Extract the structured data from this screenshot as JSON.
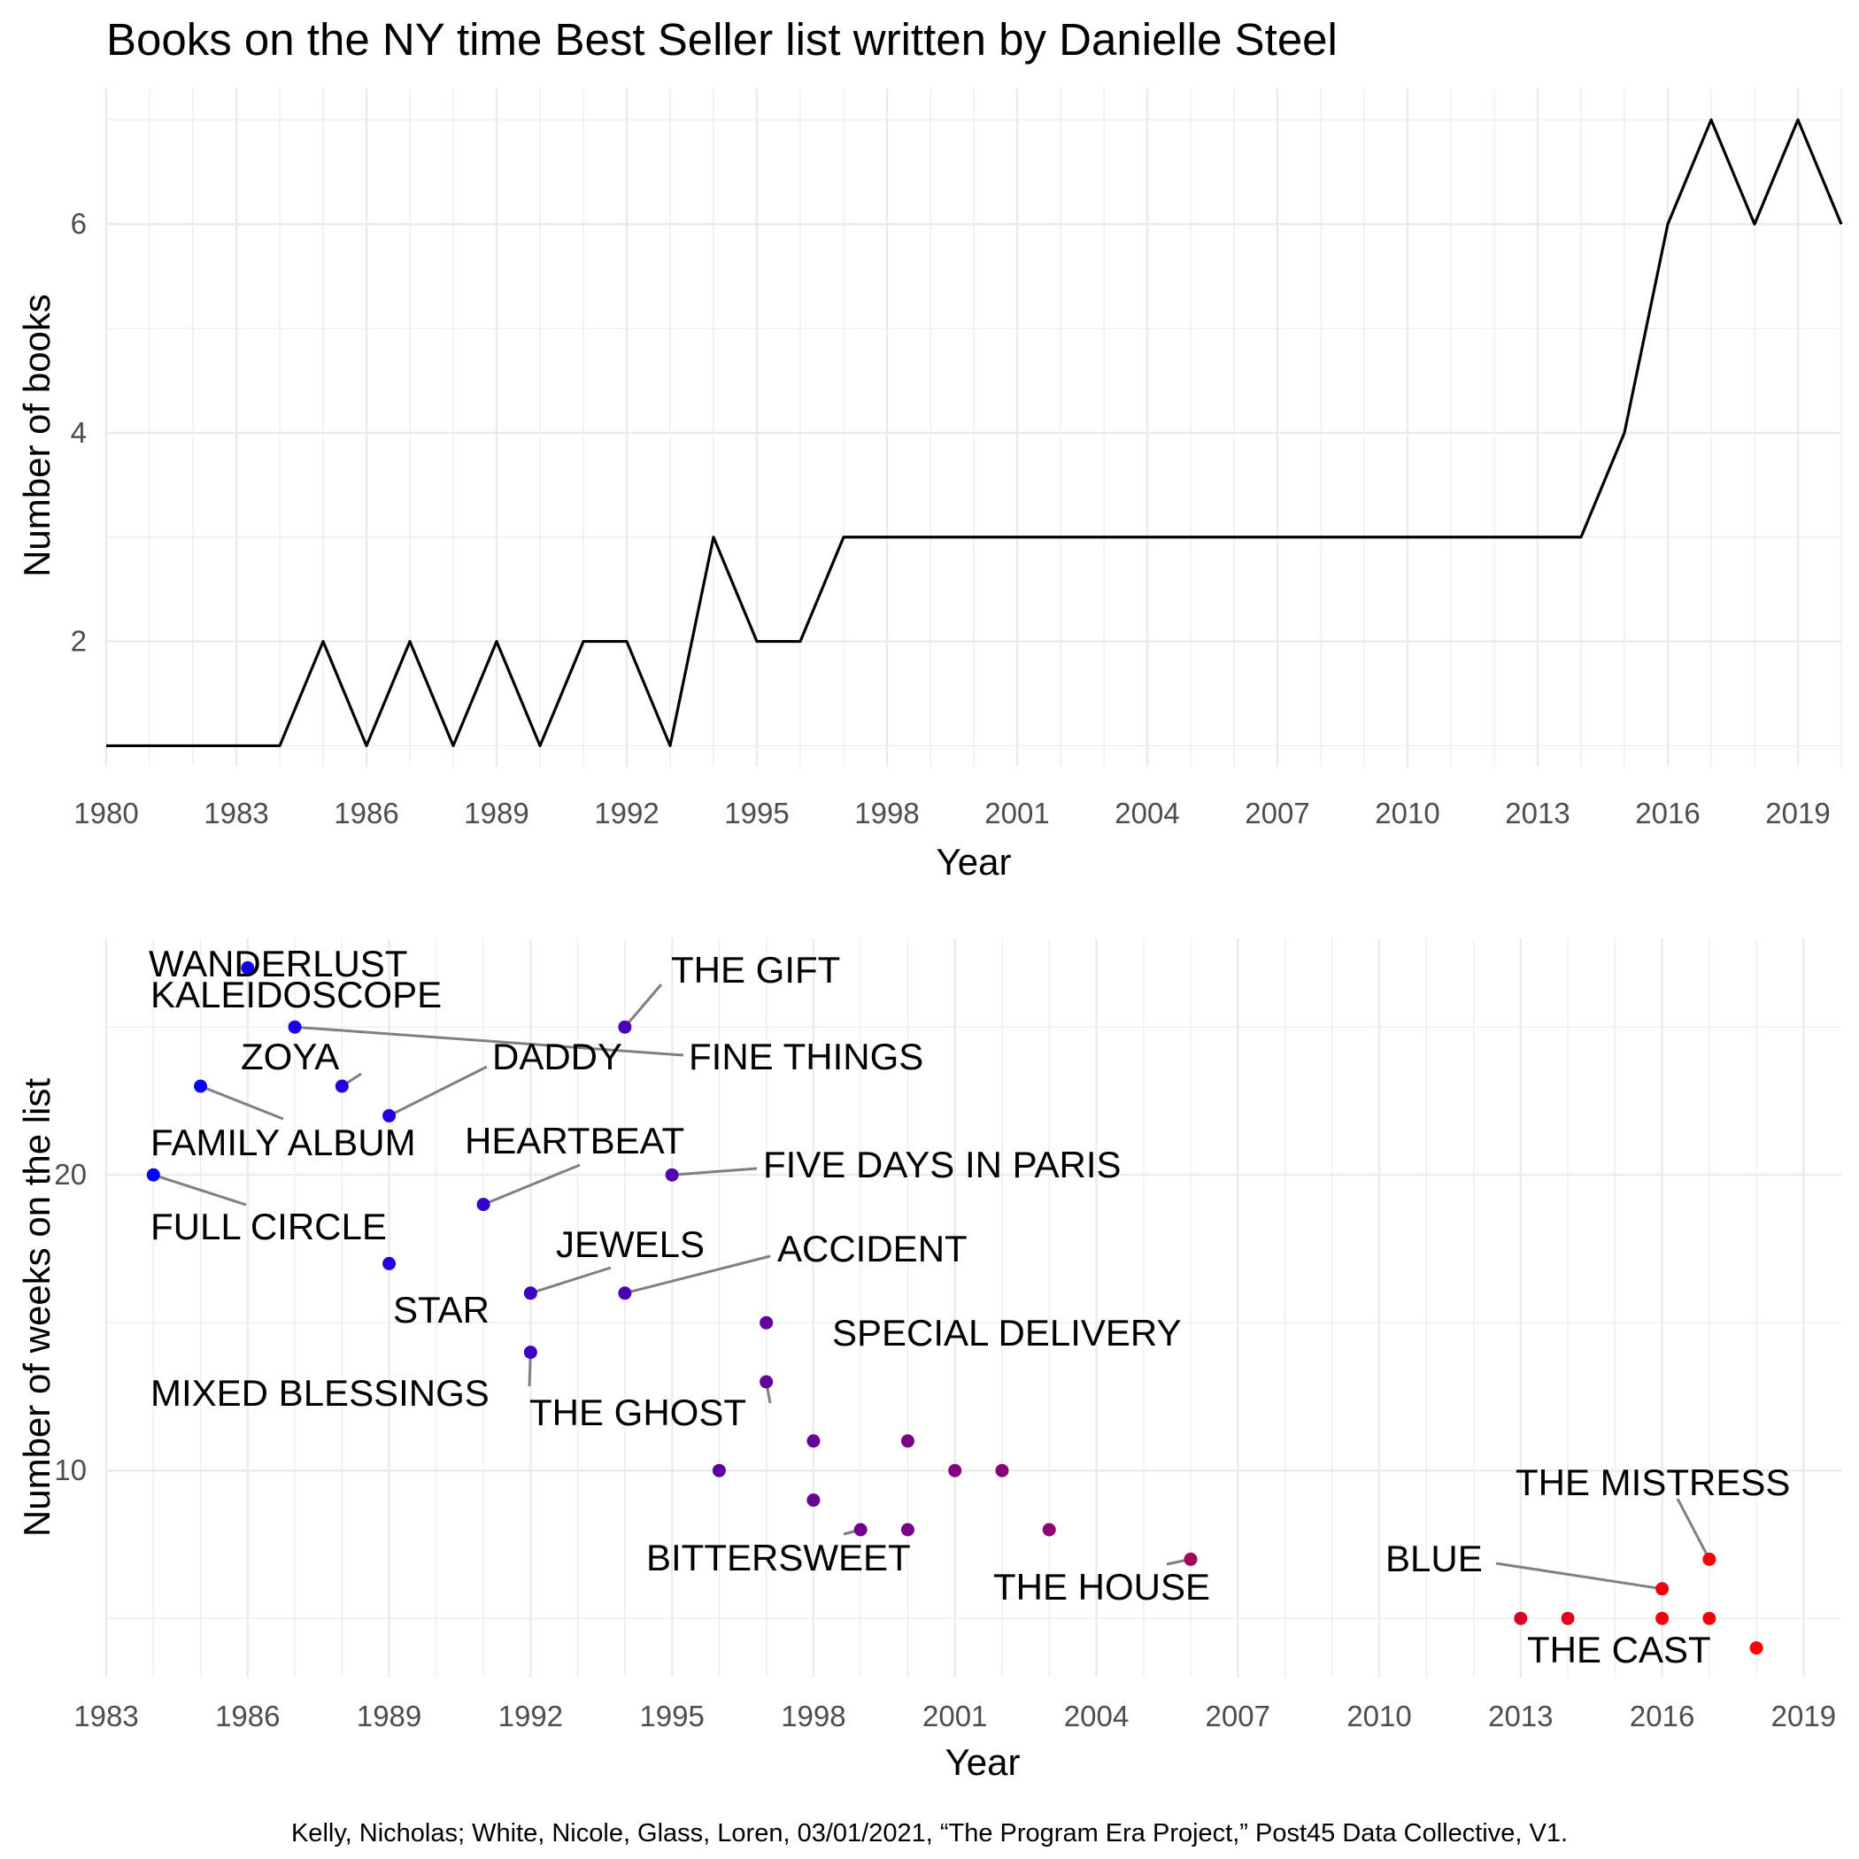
{
  "title": "Books on the NY time Best Seller list written by Danielle Steel",
  "caption": "Kelly, Nicholas; White, Nicole, Glass, Loren, 03/01/2021, “The Program Era Project,” Post45 Data Collective, V1.",
  "chart_data": [
    {
      "type": "line",
      "xlabel": "Year",
      "ylabel": "Number of books",
      "xlim": [
        1980,
        2020
      ],
      "ylim": [
        1,
        7
      ],
      "x_ticks": [
        1980,
        1983,
        1986,
        1989,
        1992,
        1995,
        1998,
        2001,
        2004,
        2007,
        2010,
        2013,
        2016,
        2019
      ],
      "y_ticks": [
        2,
        4,
        6
      ],
      "line_color": "#000000",
      "grid": true,
      "series": [
        {
          "x": [
            1980,
            1981,
            1982,
            1983,
            1984,
            1985,
            1986,
            1987,
            1988,
            1989,
            1990,
            1991,
            1992,
            1993,
            1994,
            1995,
            1996,
            1997,
            1998,
            1999,
            2000,
            2001,
            2002,
            2003,
            2004,
            2005,
            2006,
            2007,
            2008,
            2009,
            2010,
            2011,
            2012,
            2013,
            2014,
            2015,
            2016,
            2017,
            2018,
            2019,
            2020
          ],
          "values": [
            1,
            1,
            1,
            1,
            1,
            2,
            1,
            2,
            1,
            2,
            1,
            2,
            2,
            1,
            3,
            2,
            2,
            3,
            3,
            3,
            3,
            3,
            3,
            3,
            3,
            3,
            3,
            3,
            3,
            3,
            3,
            3,
            3,
            3,
            3,
            4,
            6,
            7,
            6,
            7,
            6
          ]
        }
      ]
    },
    {
      "type": "scatter",
      "xlabel": "Year",
      "ylabel": "Number of weeks on the list",
      "xlim": [
        1983,
        2019.8
      ],
      "ylim": [
        3,
        28
      ],
      "x_ticks": [
        1983,
        1986,
        1989,
        1992,
        1995,
        1998,
        2001,
        2004,
        2007,
        2010,
        2013,
        2016,
        2019
      ],
      "y_ticks": [
        10,
        20
      ],
      "color_early": "#0000ff",
      "color_late": "#ff0000",
      "grid": true,
      "points": [
        {
          "x": 1986,
          "y": 27,
          "label": "WANDERLUST"
        },
        {
          "x": 1987,
          "y": 25,
          "label": "KALEIDOSCOPE"
        },
        {
          "x": 1994,
          "y": 25,
          "label": "THE GIFT"
        },
        {
          "x": 1988,
          "y": 23,
          "label": "ZOYA"
        },
        {
          "x": 1989,
          "y": 22,
          "label": "DADDY"
        },
        {
          "x": 1985,
          "y": 23,
          "label": "FAMILY ALBUM"
        },
        {
          "x": 1984,
          "y": 20,
          "label": "FULL CIRCLE"
        },
        {
          "x": 1991,
          "y": 19,
          "label": "HEARTBEAT"
        },
        {
          "x": 1995,
          "y": 20,
          "label": "FIVE DAYS IN PARIS"
        },
        {
          "x": 1989,
          "y": 17,
          "label": "STAR"
        },
        {
          "x": 1992,
          "y": 16,
          "label": "JEWELS"
        },
        {
          "x": 1994,
          "y": 16,
          "label": "ACCIDENT"
        },
        {
          "x": 1997,
          "y": 15,
          "label": "SPECIAL DELIVERY"
        },
        {
          "x": 1992,
          "y": 14,
          "label": "MIXED BLESSINGS"
        },
        {
          "x": 1997,
          "y": 13,
          "label": "THE GHOST"
        },
        {
          "x": 1998,
          "y": 11,
          "label": ""
        },
        {
          "x": 2000,
          "y": 11,
          "label": ""
        },
        {
          "x": 1996,
          "y": 10,
          "label": ""
        },
        {
          "x": 2001,
          "y": 10,
          "label": ""
        },
        {
          "x": 2002,
          "y": 10,
          "label": ""
        },
        {
          "x": 1998,
          "y": 9,
          "label": ""
        },
        {
          "x": 1999,
          "y": 8,
          "label": "BITTERSWEET"
        },
        {
          "x": 2000,
          "y": 8,
          "label": ""
        },
        {
          "x": 2003,
          "y": 8,
          "label": ""
        },
        {
          "x": 2006,
          "y": 7,
          "label": "THE HOUSE"
        },
        {
          "x": 2017,
          "y": 7,
          "label": "THE MISTRESS"
        },
        {
          "x": 2016,
          "y": 6,
          "label": "BLUE"
        },
        {
          "x": 2013,
          "y": 5,
          "label": ""
        },
        {
          "x": 2014,
          "y": 5,
          "label": ""
        },
        {
          "x": 2016,
          "y": 5,
          "label": ""
        },
        {
          "x": 2017,
          "y": 5,
          "label": ""
        },
        {
          "x": 2018,
          "y": 4,
          "label": "THE CAST"
        }
      ],
      "extra_labels": [
        "FINE THINGS"
      ]
    }
  ]
}
